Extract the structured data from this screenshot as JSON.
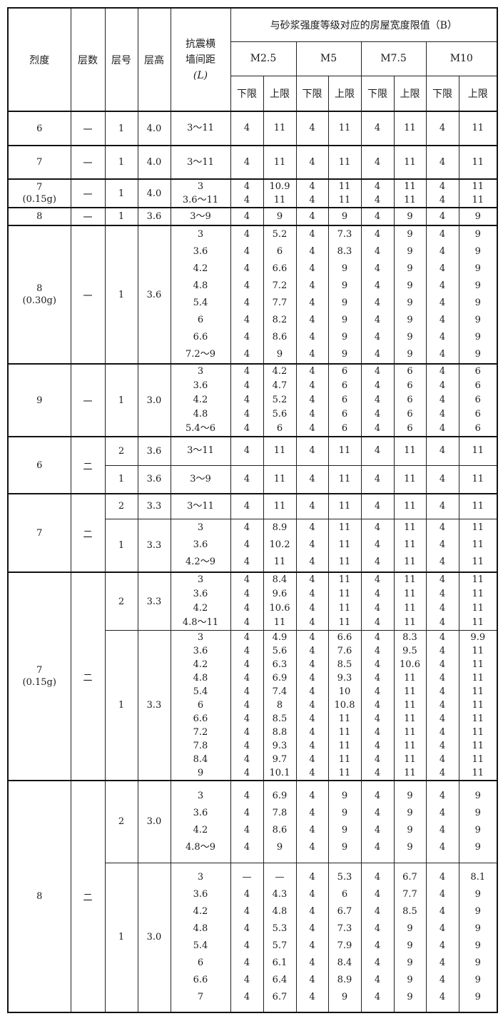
{
  "header": {
    "intensity": "烈度",
    "floors": "层数",
    "layer": "层号",
    "height": "层高",
    "spacing_line1": "抗震横",
    "spacing_line2": "墙间距",
    "spacing_line3": "(L)",
    "width_limit": "与砂浆强度等级对应的房屋宽度限值（B）",
    "grades": [
      "M2.5",
      "M5",
      "M7.5",
      "M10"
    ],
    "lower": "下限",
    "upper": "上限"
  },
  "groups": [
    {
      "intensity": [
        "6"
      ],
      "floors": "一",
      "layers": [
        {
          "layer": "1",
          "height": "4.0",
          "rows": [
            [
              "3～11",
              "4",
              "11",
              "4",
              "11",
              "4",
              "11",
              "4",
              "11"
            ]
          ]
        }
      ]
    },
    {
      "intensity": [
        "7"
      ],
      "floors": "一",
      "layers": [
        {
          "layer": "1",
          "height": "4.0",
          "rows": [
            [
              "3～11",
              "4",
              "11",
              "4",
              "11",
              "4",
              "11",
              "4",
              "11"
            ]
          ]
        }
      ]
    },
    {
      "intensity": [
        "7",
        "(0.15g)"
      ],
      "floors": "一",
      "layers": [
        {
          "layer": "1",
          "height": "4.0",
          "rows": [
            [
              "3",
              "4",
              "10.9",
              "4",
              "11",
              "4",
              "11",
              "4",
              "11"
            ],
            [
              "3.6～11",
              "4",
              "11",
              "4",
              "11",
              "4",
              "11",
              "4",
              "11"
            ]
          ]
        }
      ]
    },
    {
      "intensity": [
        "8"
      ],
      "floors": "一",
      "layers": [
        {
          "layer": "1",
          "height": "3.6",
          "rows": [
            [
              "3～9",
              "4",
              "9",
              "4",
              "9",
              "4",
              "9",
              "4",
              "9"
            ]
          ]
        }
      ]
    },
    {
      "intensity": [
        "8",
        "(0.30g)"
      ],
      "floors": "一",
      "layers": [
        {
          "layer": "1",
          "height": "3.6",
          "rows": [
            [
              "3",
              "4",
              "5.2",
              "4",
              "7.3",
              "4",
              "9",
              "4",
              "9"
            ],
            [
              "3.6",
              "4",
              "6",
              "4",
              "8.3",
              "4",
              "9",
              "4",
              "9"
            ],
            [
              "4.2",
              "4",
              "6.6",
              "4",
              "9",
              "4",
              "9",
              "4",
              "9"
            ],
            [
              "4.8",
              "4",
              "7.2",
              "4",
              "9",
              "4",
              "9",
              "4",
              "9"
            ],
            [
              "5.4",
              "4",
              "7.7",
              "4",
              "9",
              "4",
              "9",
              "4",
              "9"
            ],
            [
              "6",
              "4",
              "8.2",
              "4",
              "9",
              "4",
              "9",
              "4",
              "9"
            ],
            [
              "6.6",
              "4",
              "8.6",
              "4",
              "9",
              "4",
              "9",
              "4",
              "9"
            ],
            [
              "7.2～9",
              "4",
              "9",
              "4",
              "9",
              "4",
              "9",
              "4",
              "9"
            ]
          ]
        }
      ]
    },
    {
      "intensity": [
        "9"
      ],
      "floors": "一",
      "layers": [
        {
          "layer": "1",
          "height": "3.0",
          "rows": [
            [
              "3",
              "4",
              "4.2",
              "4",
              "6",
              "4",
              "6",
              "4",
              "6"
            ],
            [
              "3.6",
              "4",
              "4.7",
              "4",
              "6",
              "4",
              "6",
              "4",
              "6"
            ],
            [
              "4.2",
              "4",
              "5.2",
              "4",
              "6",
              "4",
              "6",
              "4",
              "6"
            ],
            [
              "4.8",
              "4",
              "5.6",
              "4",
              "6",
              "4",
              "6",
              "4",
              "6"
            ],
            [
              "5.4～6",
              "4",
              "6",
              "4",
              "6",
              "4",
              "6",
              "4",
              "6"
            ]
          ]
        }
      ]
    },
    {
      "intensity": [
        "6"
      ],
      "floors": "二",
      "layers": [
        {
          "layer": "2",
          "height": "3.6",
          "rows": [
            [
              "3～11",
              "4",
              "11",
              "4",
              "11",
              "4",
              "11",
              "4",
              "11"
            ]
          ]
        },
        {
          "layer": "1",
          "height": "3.6",
          "rows": [
            [
              "3～9",
              "4",
              "11",
              "4",
              "11",
              "4",
              "11",
              "4",
              "11"
            ]
          ]
        }
      ]
    },
    {
      "intensity": [
        "7"
      ],
      "floors": "二",
      "layers": [
        {
          "layer": "2",
          "height": "3.3",
          "rows": [
            [
              "3～11",
              "4",
              "11",
              "4",
              "11",
              "4",
              "11",
              "4",
              "11"
            ]
          ]
        },
        {
          "layer": "1",
          "height": "3.3",
          "rows": [
            [
              "3",
              "4",
              "8.9",
              "4",
              "11",
              "4",
              "11",
              "4",
              "11"
            ],
            [
              "3.6",
              "4",
              "10.2",
              "4",
              "11",
              "4",
              "11",
              "4",
              "11"
            ],
            [
              "4.2～9",
              "4",
              "11",
              "4",
              "11",
              "4",
              "11",
              "4",
              "11"
            ]
          ]
        }
      ]
    },
    {
      "intensity": [
        "7",
        "(0.15g)"
      ],
      "floors": "二",
      "layers": [
        {
          "layer": "2",
          "height": "3.3",
          "rows": [
            [
              "3",
              "4",
              "8.4",
              "4",
              "11",
              "4",
              "11",
              "4",
              "11"
            ],
            [
              "3.6",
              "4",
              "9.6",
              "4",
              "11",
              "4",
              "11",
              "4",
              "11"
            ],
            [
              "4.2",
              "4",
              "10.6",
              "4",
              "11",
              "4",
              "11",
              "4",
              "11"
            ],
            [
              "4.8～11",
              "4",
              "11",
              "4",
              "11",
              "4",
              "11",
              "4",
              "11"
            ]
          ]
        },
        {
          "layer": "1",
          "height": "3.3",
          "rows": [
            [
              "3",
              "4",
              "4.9",
              "4",
              "6.6",
              "4",
              "8.3",
              "4",
              "9.9"
            ],
            [
              "3.6",
              "4",
              "5.6",
              "4",
              "7.6",
              "4",
              "9.5",
              "4",
              "11"
            ],
            [
              "4.2",
              "4",
              "6.3",
              "4",
              "8.5",
              "4",
              "10.6",
              "4",
              "11"
            ],
            [
              "4.8",
              "4",
              "6.9",
              "4",
              "9.3",
              "4",
              "11",
              "4",
              "11"
            ],
            [
              "5.4",
              "4",
              "7.4",
              "4",
              "10",
              "4",
              "11",
              "4",
              "11"
            ],
            [
              "6",
              "4",
              "8",
              "4",
              "10.8",
              "4",
              "11",
              "4",
              "11"
            ],
            [
              "6.6",
              "4",
              "8.5",
              "4",
              "11",
              "4",
              "11",
              "4",
              "11"
            ],
            [
              "7.2",
              "4",
              "8.8",
              "4",
              "11",
              "4",
              "11",
              "4",
              "11"
            ],
            [
              "7.8",
              "4",
              "9.3",
              "4",
              "11",
              "4",
              "11",
              "4",
              "11"
            ],
            [
              "8.4",
              "4",
              "9.7",
              "4",
              "11",
              "4",
              "11",
              "4",
              "11"
            ],
            [
              "9",
              "4",
              "10.1",
              "4",
              "11",
              "4",
              "11",
              "4",
              "11"
            ]
          ]
        }
      ]
    },
    {
      "intensity": [
        "8"
      ],
      "floors": "二",
      "layers": [
        {
          "layer": "2",
          "height": "3.0",
          "rows": [
            [
              "3",
              "4",
              "6.9",
              "4",
              "9",
              "4",
              "9",
              "4",
              "9"
            ],
            [
              "3.6",
              "4",
              "7.8",
              "4",
              "9",
              "4",
              "9",
              "4",
              "9"
            ],
            [
              "4.2",
              "4",
              "8.6",
              "4",
              "9",
              "4",
              "9",
              "4",
              "9"
            ],
            [
              "4.8～9",
              "4",
              "9",
              "4",
              "9",
              "4",
              "9",
              "4",
              "9"
            ]
          ]
        },
        {
          "layer": "1",
          "height": "3.0",
          "rows": [
            [
              "3",
              "—",
              "—",
              "4",
              "5.3",
              "4",
              "6.7",
              "4",
              "8.1"
            ],
            [
              "3.6",
              "4",
              "4.3",
              "4",
              "6",
              "4",
              "7.7",
              "4",
              "9"
            ],
            [
              "4.2",
              "4",
              "4.8",
              "4",
              "6.7",
              "4",
              "8.5",
              "4",
              "9"
            ],
            [
              "4.8",
              "4",
              "5.3",
              "4",
              "7.3",
              "4",
              "9",
              "4",
              "9"
            ],
            [
              "5.4",
              "4",
              "5.7",
              "4",
              "7.9",
              "4",
              "9",
              "4",
              "9"
            ],
            [
              "6",
              "4",
              "6.1",
              "4",
              "8.4",
              "4",
              "9",
              "4",
              "9"
            ],
            [
              "6.6",
              "4",
              "6.4",
              "4",
              "8.9",
              "4",
              "9",
              "4",
              "9"
            ],
            [
              "7",
              "4",
              "6.7",
              "4",
              "9",
              "4",
              "9",
              "4",
              "9"
            ]
          ]
        }
      ]
    }
  ]
}
